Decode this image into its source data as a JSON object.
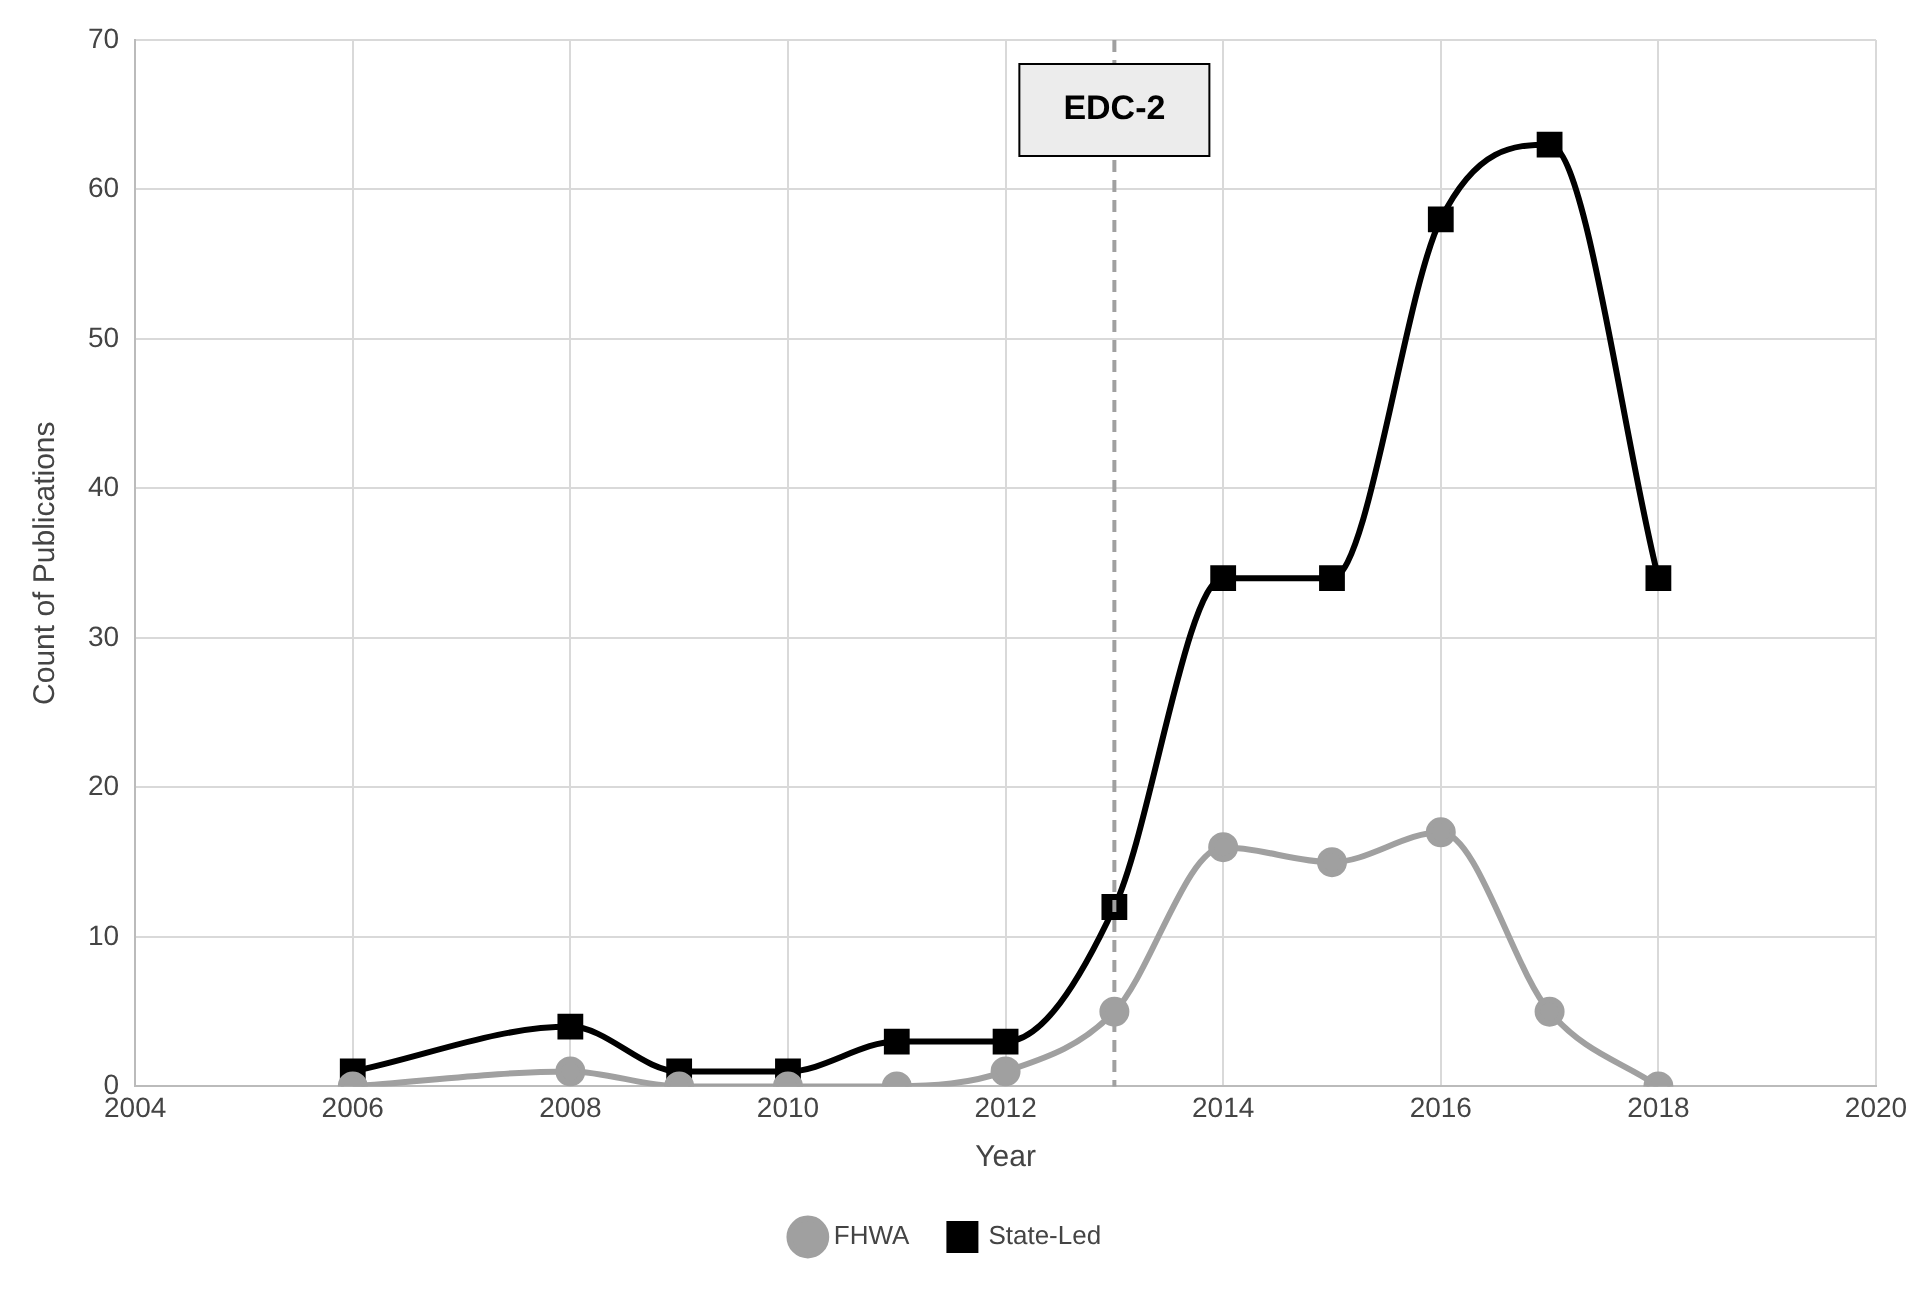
{
  "chart_data": {
    "type": "line",
    "xlabel": "Year",
    "ylabel": "Count of Publications",
    "x": [
      2006,
      2008,
      2009,
      2010,
      2011,
      2012,
      2013,
      2014,
      2015,
      2016,
      2017,
      2018
    ],
    "series": [
      {
        "name": "FHWA",
        "color": "#a0a0a0",
        "marker": "circle",
        "values": [
          0,
          1,
          0,
          0,
          0,
          1,
          5,
          16,
          15,
          17,
          5,
          0
        ]
      },
      {
        "name": "State-Led",
        "color": "#000000",
        "marker": "square",
        "values": [
          1,
          4,
          1,
          1,
          3,
          3,
          12,
          34,
          34,
          58,
          63,
          34
        ]
      }
    ],
    "xlim": [
      2004,
      2020
    ],
    "xticks": [
      2004,
      2006,
      2008,
      2010,
      2012,
      2014,
      2016,
      2018,
      2020
    ],
    "ylim": [
      0,
      70
    ],
    "yticks": [
      0,
      10,
      20,
      30,
      40,
      50,
      60,
      70
    ],
    "ref_lines": [
      {
        "axis": "x",
        "value": 2013,
        "label": "EDC-2",
        "color": "#a0a0a0",
        "line_style": "dashed"
      }
    ],
    "grid": true,
    "legend": "bottom",
    "line_style": "solid"
  }
}
